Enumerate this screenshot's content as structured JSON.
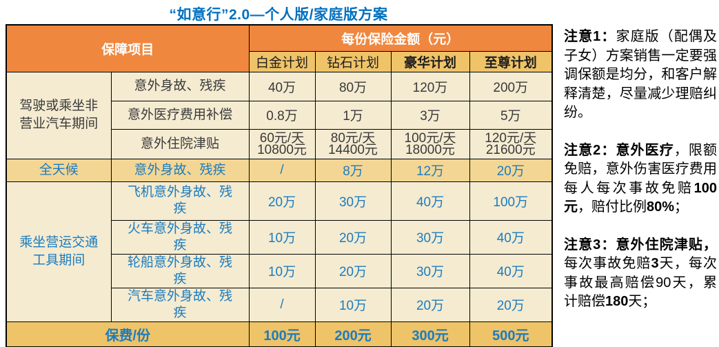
{
  "title": "“如意行”2.0—个人版/家庭版方案",
  "colors": {
    "header_orange": "#F0873F",
    "plan_tan": "#EFC368",
    "body_cream": "#F4EBD1",
    "allweather_tan": "#F4D694",
    "footer_gold": "#EFC368",
    "title_blue": "#0070C0",
    "table_blue": "#1B7CC0",
    "dark_text": "#3A3A3A"
  },
  "table": {
    "header": {
      "items_label": "保障项目",
      "amount_label": "每份保险金额（元）",
      "plans": [
        "白金计划",
        "钻石计划",
        "豪华计划",
        "至尊计划"
      ]
    },
    "groups": [
      {
        "label": "驾驶或乘坐非营业汽车期间"
      },
      {
        "label": "全天候"
      },
      {
        "label": "乘坐营运交通工具期间"
      }
    ],
    "rows": [
      {
        "item": "意外身故、残疾",
        "values": [
          "40万",
          "80万",
          "120万",
          "200万"
        ]
      },
      {
        "item": "意外医疗费用补偿",
        "values": [
          "0.8万",
          "1万",
          "3万",
          "5万"
        ]
      },
      {
        "item": "意外住院津贴",
        "values": [
          "60元/天\n10800元",
          "80元/天\n14400元",
          "100元/天\n18000元",
          "120元/天\n21600元"
        ]
      },
      {
        "item": "意外身故、残疾",
        "values": [
          "/",
          "8万",
          "12万",
          "20万"
        ]
      },
      {
        "item": "飞机意外身故、残疾",
        "values": [
          "20万",
          "30万",
          "40万",
          "100万"
        ]
      },
      {
        "item": "火车意外身故、残疾",
        "values": [
          "10万",
          "20万",
          "30万",
          "40万"
        ]
      },
      {
        "item": "轮船意外身故、残疾",
        "values": [
          "10万",
          "20万",
          "30万",
          "40万"
        ]
      },
      {
        "item": "汽车意外身故、残疾",
        "values": [
          "/",
          "10万",
          "20万",
          "20万"
        ]
      }
    ],
    "footer": {
      "label": "保费/份",
      "values": [
        "100元",
        "200元",
        "300元",
        "500元"
      ]
    }
  },
  "notes": [
    {
      "segments": [
        {
          "t": "注意1：",
          "b": true
        },
        {
          "t": "家庭版（配偶及子女）方案销售一定要强调保额是均分，和客户解释清楚，尽量减少理赔纠纷。",
          "b": false
        }
      ]
    },
    {
      "segments": [
        {
          "t": "注意2：意外医疗",
          "b": true
        },
        {
          "t": "，限额免赔，意外伤害医疗费用每人每次事故免赔",
          "b": false
        },
        {
          "t": "100元",
          "b": true
        },
        {
          "t": "，赔付比例",
          "b": false
        },
        {
          "t": "80%",
          "b": true
        },
        {
          "t": "；",
          "b": false
        }
      ]
    },
    {
      "segments": [
        {
          "t": "注意3：意外住院津贴，",
          "b": true
        },
        {
          "t": "每次事故免赔",
          "b": false
        },
        {
          "t": "3",
          "b": true
        },
        {
          "t": "天，每次事故最高赔偿90天，累计赔偿",
          "b": false
        },
        {
          "t": "180",
          "b": true
        },
        {
          "t": "天；",
          "b": false
        }
      ]
    }
  ]
}
